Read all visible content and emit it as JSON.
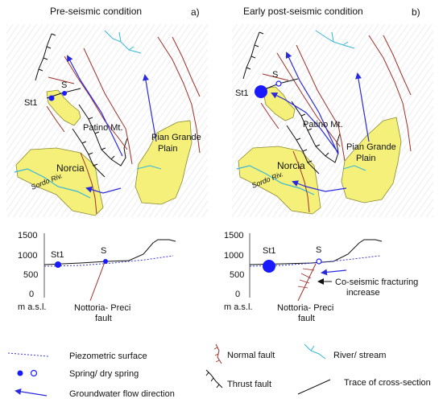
{
  "panels": {
    "a": {
      "title": "Pre-seismic condition",
      "letter": "a)"
    },
    "b": {
      "title": "Early post-seismic condition",
      "letter": "b)"
    }
  },
  "map_labels": {
    "st1": "St1",
    "s": "S",
    "patino": "Patino Mt.",
    "pian_grande_1": "Pian Grande",
    "pian_grande_2": "Plain",
    "norcia": "Norcia",
    "sordo": "Sordo Riv."
  },
  "section": {
    "yticks": [
      "1500",
      "1000",
      "500",
      "0"
    ],
    "unit": "m a.s.l.",
    "fault_1": "Nottoria- Preci",
    "fault_2": "fault",
    "annotation_1": "Co-seismic fracturing",
    "annotation_2": "increase"
  },
  "legend": {
    "piezometric": "Piezometric surface",
    "spring": "Spring/ dry spring",
    "flow": "Groundwater flow direction",
    "normal_fault": "Normal fault",
    "thrust_fault": "Thrust fault",
    "river": "River/ stream",
    "trace": "Trace of cross-section"
  },
  "colors": {
    "plain_fill": "#f5f07a",
    "plain_stroke": "#8a8a30",
    "normal_fault": "#a0302a",
    "thrust": "#111111",
    "flow_arrow": "#2a2adc",
    "river": "#38b6d8",
    "spring": "#1a1aff",
    "piezometric": "#3a3ad0"
  }
}
